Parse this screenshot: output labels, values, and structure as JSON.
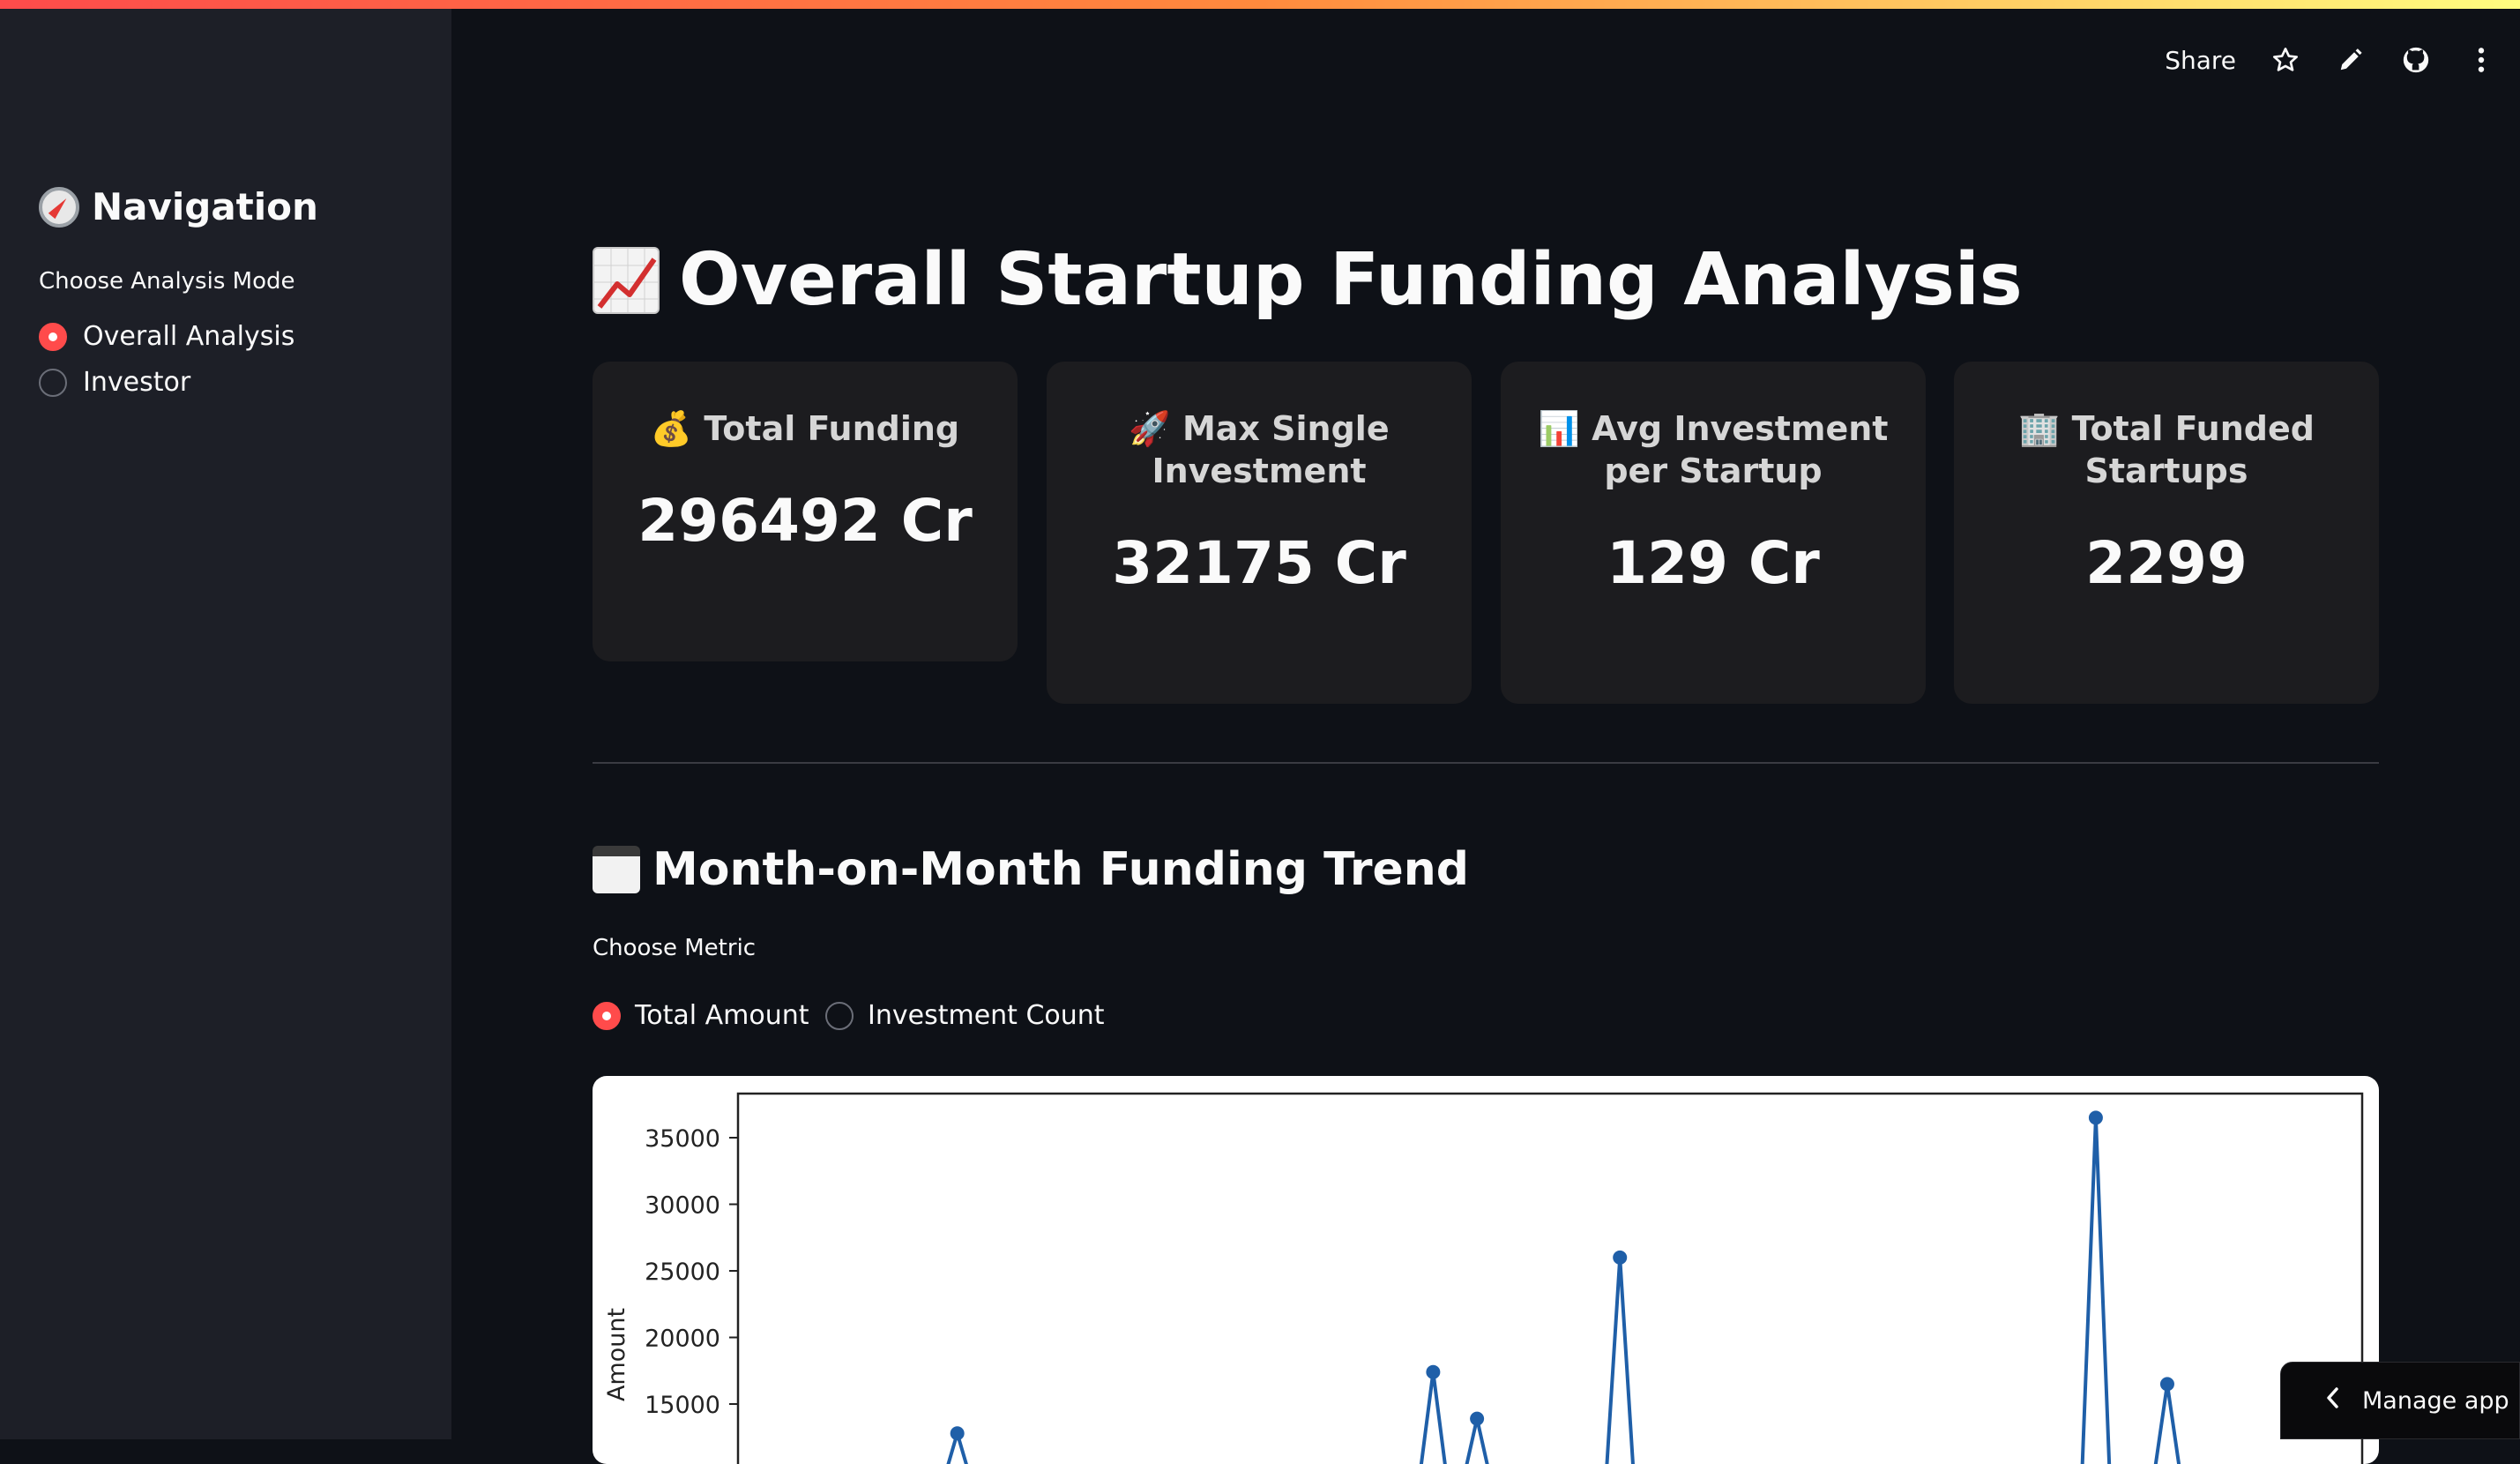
{
  "toolbar": {
    "share_label": "Share"
  },
  "sidebar": {
    "title": "Navigation",
    "radio_label": "Choose Analysis Mode",
    "options": [
      {
        "label": "Overall Analysis",
        "selected": true
      },
      {
        "label": "Investor",
        "selected": false
      }
    ]
  },
  "main": {
    "title": "Overall Startup Funding Analysis",
    "cards": [
      {
        "icon": "money-bag-icon",
        "label": "Total Funding",
        "value": "296492 Cr"
      },
      {
        "icon": "rocket-icon",
        "label": "Max Single Investment",
        "value": "32175 Cr"
      },
      {
        "icon": "bar-chart-icon",
        "label": "Avg Investment per Startup",
        "value": "129 Cr"
      },
      {
        "icon": "office-building-icon",
        "label": "Total Funded Startups",
        "value": "2299"
      }
    ],
    "section_title": "Month-on-Month Funding Trend",
    "metric_label": "Choose Metric",
    "metric_options": [
      {
        "label": "Total Amount",
        "selected": true
      },
      {
        "label": "Investment Count",
        "selected": false
      }
    ]
  },
  "chart_data": {
    "type": "line",
    "ylabel": "Amount",
    "yticks": [
      15000,
      20000,
      25000,
      30000,
      35000
    ],
    "ylim": [
      13000,
      37000
    ],
    "line_color": "#1f5fa8",
    "visible_points": [
      {
        "x": 0.135,
        "y": 12800
      },
      {
        "x": 0.428,
        "y": 17400
      },
      {
        "x": 0.455,
        "y": 13900
      },
      {
        "x": 0.543,
        "y": 26000
      },
      {
        "x": 0.836,
        "y": 36500
      },
      {
        "x": 0.88,
        "y": 16500
      }
    ],
    "x_domain": [
      0,
      1
    ]
  },
  "manage_label": "Manage app"
}
